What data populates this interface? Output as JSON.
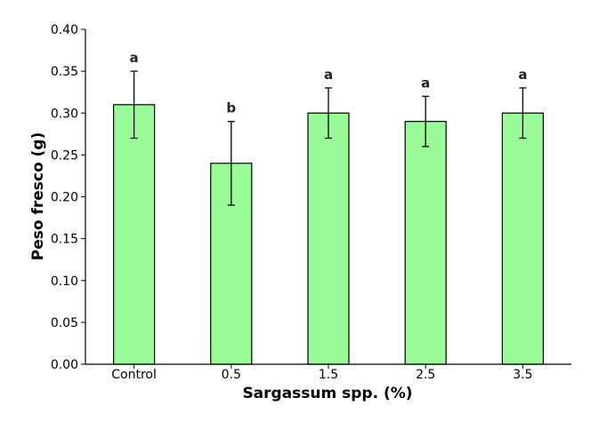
{
  "chart_data": {
    "type": "bar",
    "categories": [
      "Control",
      "0.5",
      "1.5",
      "2.5",
      "3.5"
    ],
    "values": [
      0.31,
      0.24,
      0.3,
      0.29,
      0.3
    ],
    "errors": [
      0.04,
      0.05,
      0.03,
      0.03,
      0.03
    ],
    "significance_labels": [
      "a",
      "b",
      "a",
      "a",
      "a"
    ],
    "xlabel": "Sargassum spp. (%)",
    "ylabel": "Peso fresco (g)",
    "ylim": [
      0,
      0.4
    ],
    "yticks": [
      "0.00",
      "0.05",
      "0.10",
      "0.15",
      "0.20",
      "0.25",
      "0.30",
      "0.35",
      "0.40"
    ],
    "bar_color": "#98fb98",
    "bar_edge_color": "#000000",
    "grid": false,
    "legend": false
  }
}
